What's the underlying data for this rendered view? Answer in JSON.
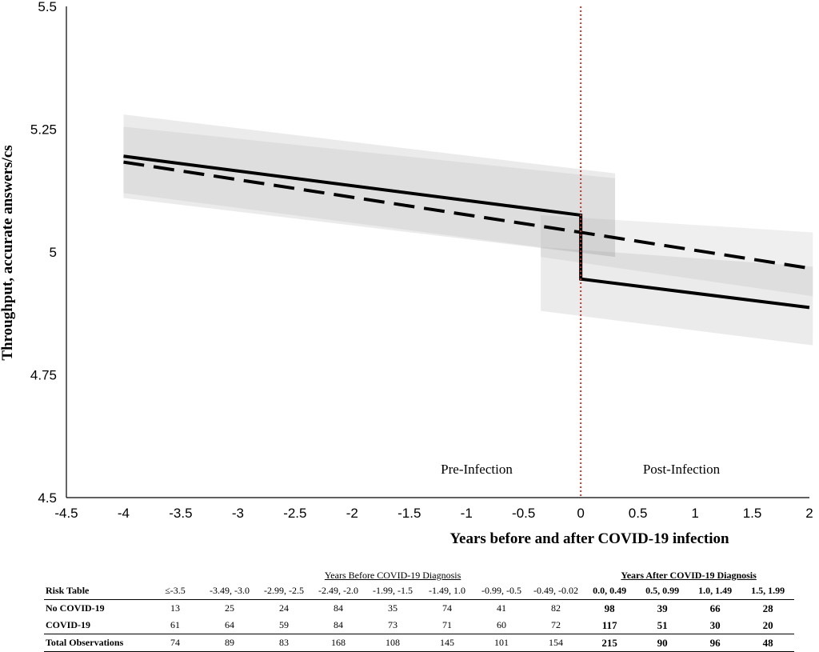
{
  "chart_data": {
    "type": "line",
    "title": "",
    "xlabel": "Years before and after COVID-19 infection",
    "ylabel": "Throughput, accurate answers/cs",
    "xlim": [
      -4.5,
      2
    ],
    "ylim": [
      4.5,
      5.5
    ],
    "x_ticks": [
      "-4.5",
      "-4",
      "-3.5",
      "-3",
      "-2.5",
      "-2",
      "-1.5",
      "-1",
      "-0.5",
      "0",
      "0.5",
      "1",
      "1.5",
      "2"
    ],
    "y_ticks": [
      "4.5",
      "4.75",
      "5",
      "5.25",
      "5.5"
    ],
    "grid": false,
    "infection_marker_x": 0,
    "annotations": [
      "Pre-Infection",
      "Post-Infection"
    ],
    "series": [
      {
        "style": "solid",
        "color": "#000000",
        "points": [
          [
            -4,
            5.195
          ],
          [
            0,
            5.075
          ],
          [
            0,
            4.945
          ],
          [
            2,
            4.887
          ]
        ],
        "ci_band": [
          {
            "x_range": [
              -4,
              0
            ],
            "lower": [
              5.11,
              4.99
            ],
            "upper": [
              5.28,
              5.16
            ]
          },
          {
            "x_range": [
              0,
              2
            ],
            "lower": [
              4.88,
              4.81
            ],
            "upper": [
              5.01,
              4.97
            ]
          }
        ]
      },
      {
        "style": "dashed",
        "color": "#000000",
        "points": [
          [
            -4,
            5.183
          ],
          [
            0,
            5.04
          ],
          [
            2,
            4.967
          ]
        ],
        "ci_band": [
          {
            "x_range": [
              -4,
              0
            ],
            "lower": [
              5.12,
              4.99
            ],
            "upper": [
              5.255,
              5.15
            ]
          },
          {
            "x_range": [
              0,
              2
            ],
            "lower": [
              4.99,
              4.91
            ],
            "upper": [
              5.075,
              5.04
            ]
          }
        ]
      }
    ]
  },
  "risk_table": {
    "group_before": "Years Before COVID-19 Diagnosis",
    "group_after": "Years After COVID-19 Diagnosis",
    "row_header": "Risk Table",
    "intervals_before": [
      "≤-3.5",
      "-3.49, -3.0",
      "-2.99, -2.5",
      "-2.49, -2.0",
      "-1.99, -1.5",
      "-1.49, 1.0",
      "-0.99, -0.5",
      "-0.49, -0.02"
    ],
    "intervals_after": [
      "0.0, 0.49",
      "0.5, 0.99",
      "1.0, 1.49",
      "1.5, 1.99"
    ],
    "rows": [
      {
        "label": "No COVID-19",
        "values": [
          "13",
          "25",
          "24",
          "84",
          "35",
          "74",
          "41",
          "82",
          "98",
          "39",
          "66",
          "28"
        ]
      },
      {
        "label": "COVID-19",
        "values": [
          "61",
          "64",
          "59",
          "84",
          "73",
          "71",
          "60",
          "72",
          "117",
          "51",
          "30",
          "20"
        ]
      },
      {
        "label": "Total Observations",
        "values": [
          "74",
          "89",
          "83",
          "168",
          "108",
          "145",
          "101",
          "154",
          "215",
          "90",
          "96",
          "48"
        ]
      }
    ]
  }
}
